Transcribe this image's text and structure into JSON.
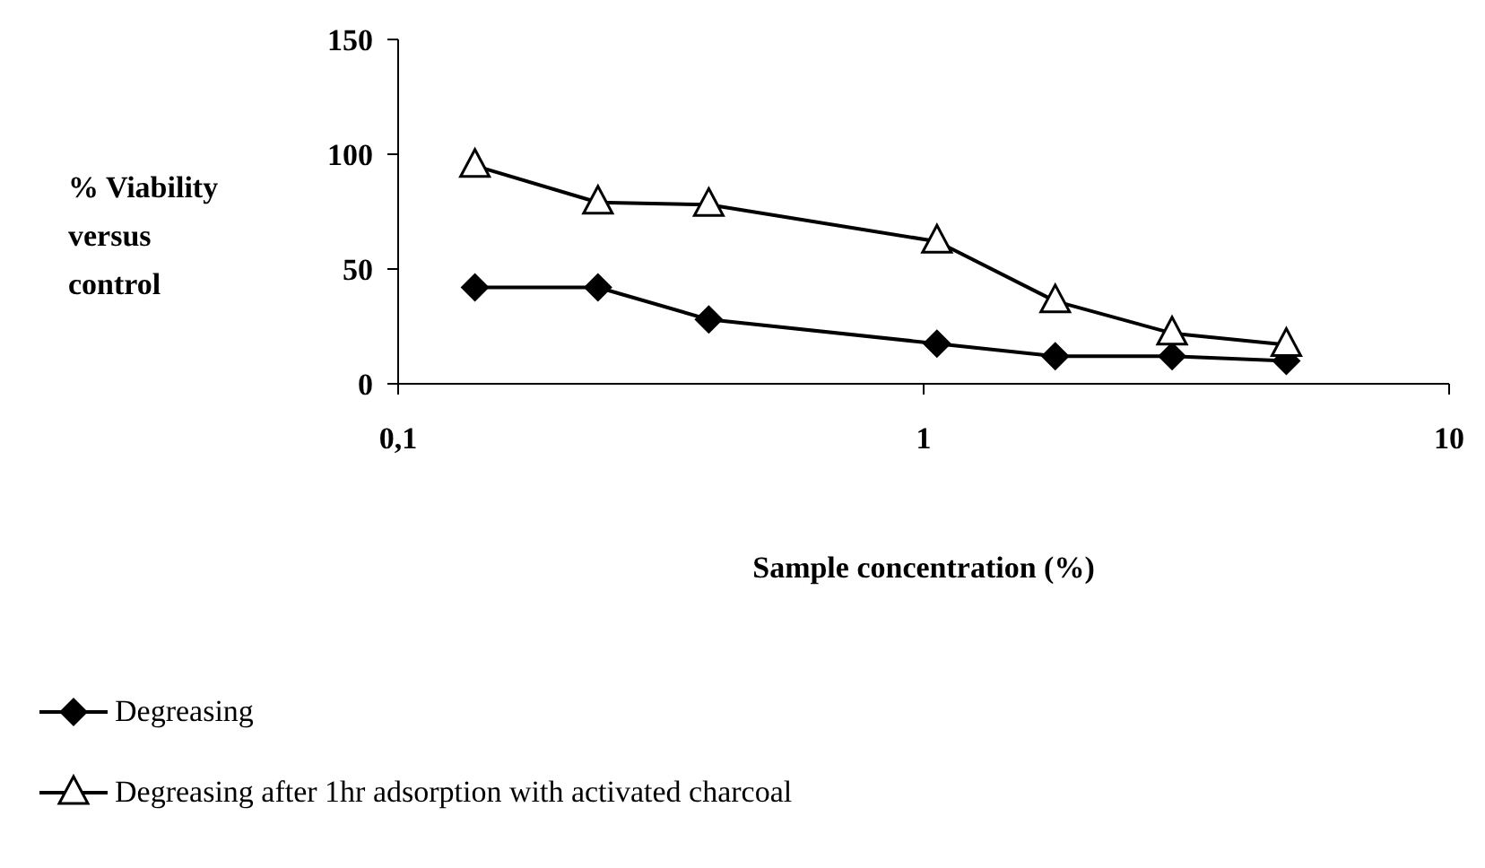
{
  "chart_data": {
    "type": "line",
    "xlabel": "Sample concentration (%)",
    "ylabel": "% Viability versus control",
    "log": "x",
    "xlim": [
      0.1,
      10
    ],
    "xticks": [
      {
        "value": 0.1,
        "label": "0,1"
      },
      1,
      10
    ],
    "ylim": [
      0,
      150
    ],
    "yticks": [
      0,
      50,
      100,
      150
    ],
    "grid": false,
    "legend": "bottom",
    "series": [
      {
        "name": "Degreasing",
        "color": "#000000",
        "marker": "diamond",
        "x": [
          0.14,
          0.24,
          0.39,
          1.06,
          1.78,
          2.97,
          4.9
        ],
        "values": [
          42,
          42,
          28,
          17.5,
          12,
          12,
          10
        ]
      },
      {
        "name": "Degreasing after 1hr adsorption with activated charcoal",
        "color": "#000000",
        "marker": "triangle",
        "x": [
          0.14,
          0.24,
          0.39,
          1.06,
          1.78,
          2.97,
          4.9
        ],
        "values": [
          95,
          79,
          78,
          62,
          36,
          22,
          17
        ]
      }
    ]
  }
}
